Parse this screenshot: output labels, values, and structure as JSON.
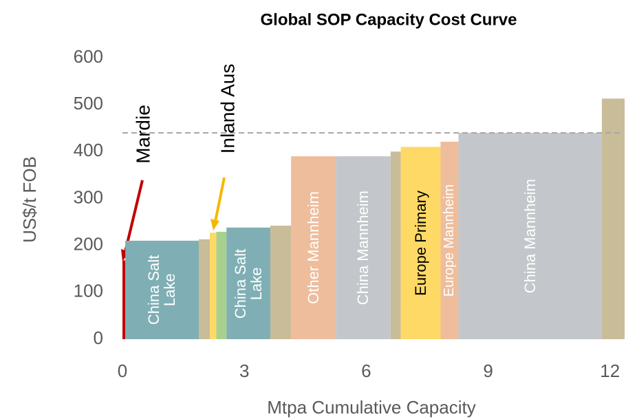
{
  "chart_data": {
    "type": "bar",
    "title": "Global SOP Capacity Cost Curve",
    "x_label": "Mtpa Cumulative Capacity",
    "y_label": "US$/t FOB",
    "bins": [
      0,
      0.07,
      1.88,
      2.15,
      2.31,
      2.56,
      3.64,
      4.15,
      5.25,
      6.6,
      6.85,
      7.83,
      8.27,
      11.8,
      12.36
    ],
    "values": [
      168,
      210,
      213,
      227,
      229,
      238,
      242,
      390,
      390,
      400,
      410,
      421,
      440,
      513
    ],
    "colors": [
      "#c00000",
      "#7fafb5",
      "#c9bc99",
      "#ffd966",
      "#a9d18e",
      "#7fafb5",
      "#c9bc99",
      "#eebd9c",
      "#c3c7cb",
      "#c9bc99",
      "#ffd966",
      "#eebd9c",
      "#c3c7cb",
      "#c9bc99"
    ],
    "labels": [
      null,
      "China Salt Lake",
      null,
      null,
      null,
      "China Salt Lake",
      null,
      "Other Mannheim",
      "China Mannheim",
      null,
      "Europe Primary",
      "Europe Mannheim",
      "China Mannheim",
      null
    ],
    "label_colors": [
      "#ffffff",
      "#ffffff",
      "#ffffff",
      "#ffffff",
      "#ffffff",
      "#ffffff",
      "#ffffff",
      "#ffffff",
      "#ffffff",
      "#ffffff",
      "#000000",
      "#ffffff",
      "#ffffff",
      "#ffffff"
    ],
    "reference_line": 440,
    "annotations": [
      {
        "text": "Mardie",
        "color": "#c00000"
      },
      {
        "text": "Inland Aus",
        "color": "#f6b700"
      }
    ],
    "xlim": [
      0,
      12.36
    ],
    "ylim": [
      0,
      600
    ],
    "xticks": [
      0,
      3,
      6,
      9,
      12
    ],
    "yticks": [
      0,
      100,
      200,
      300,
      400,
      500,
      600
    ]
  }
}
